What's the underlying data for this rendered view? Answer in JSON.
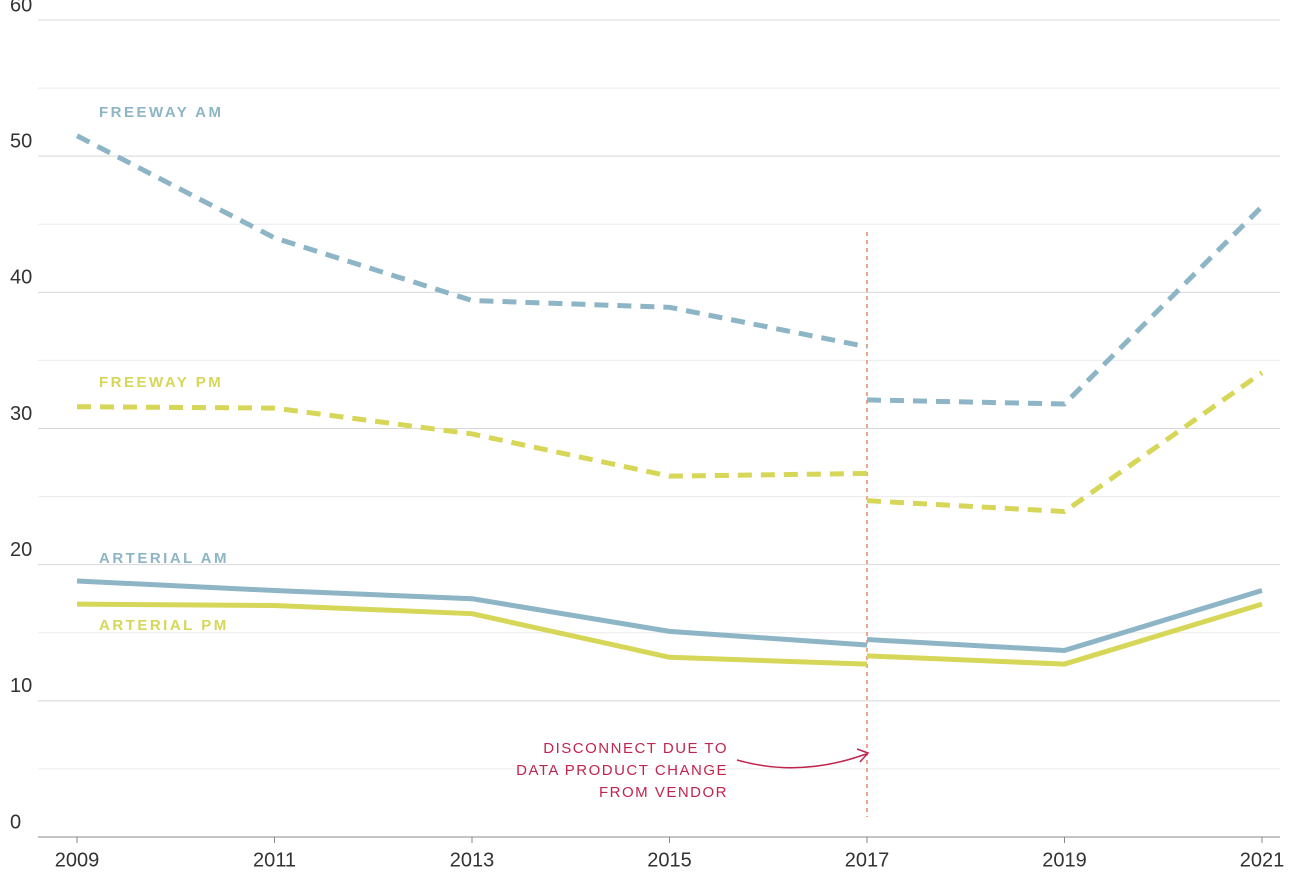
{
  "chart_data": {
    "type": "line",
    "x": [
      2009,
      2011,
      2013,
      2015,
      2017,
      2017,
      2017,
      2019,
      2021
    ],
    "xlim": [
      2009,
      2021
    ],
    "xticks": [
      2009,
      2011,
      2013,
      2015,
      2017,
      2019,
      2021
    ],
    "ylim": [
      0,
      60
    ],
    "yticks": [
      0,
      10,
      20,
      30,
      40,
      50,
      60
    ],
    "minor_yticks": [
      5,
      15,
      25,
      35,
      45,
      55
    ],
    "grid": true,
    "series": [
      {
        "name": "FREEWAY AM",
        "color": "#8db5c6",
        "dashed": true,
        "values": [
          51.5,
          44.0,
          39.4,
          38.9,
          36.0,
          null,
          32.1,
          31.8,
          46.3
        ]
      },
      {
        "name": "FREEWAY PM",
        "color": "#d6d658",
        "dashed": true,
        "values": [
          31.6,
          31.5,
          29.6,
          26.5,
          26.7,
          null,
          24.7,
          23.9,
          34.1
        ]
      },
      {
        "name": "ARTERIAL AM",
        "color": "#8db5c6",
        "dashed": false,
        "values": [
          18.8,
          18.1,
          17.5,
          15.1,
          14.1,
          null,
          14.5,
          13.7,
          18.1
        ]
      },
      {
        "name": "ARTERIAL PM",
        "color": "#d6d658",
        "dashed": false,
        "values": [
          17.1,
          17.0,
          16.4,
          13.2,
          12.7,
          null,
          13.3,
          12.7,
          17.1
        ]
      }
    ],
    "annotation": [
      "DISCONNECT DUE TO",
      "DATA PRODUCT CHANGE",
      "FROM VENDOR"
    ],
    "annotation_x": 2017
  }
}
